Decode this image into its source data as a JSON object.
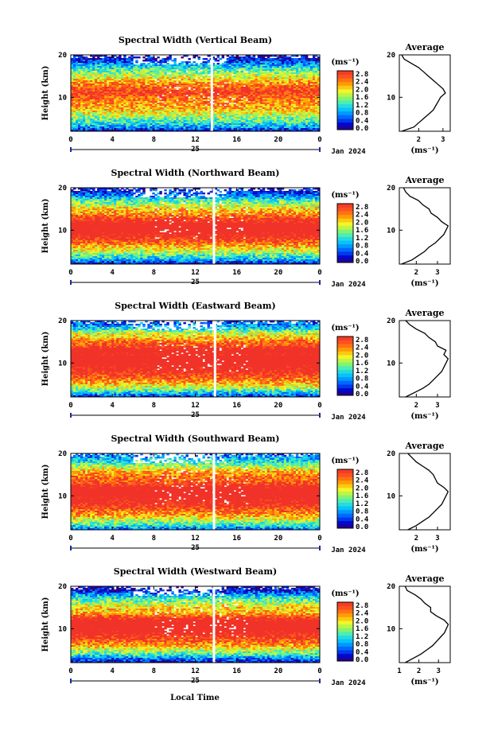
{
  "figure": {
    "x_label": "Local Time",
    "date_label": "Jan 2024",
    "day_label": "25",
    "average_title": "Average",
    "colorbar_unit": "(ms⁻¹)"
  },
  "chart_data": [
    {
      "type": "heatmap",
      "title": "Spectral Width (Vertical Beam)",
      "xlabel": "",
      "ylabel": "Height (km)",
      "xlim": [
        0,
        24
      ],
      "ylim": [
        2,
        20
      ],
      "xticks": [
        "0",
        "4",
        "8",
        "12",
        "16",
        "20",
        "0"
      ],
      "yticks": [
        "10",
        "20"
      ],
      "colorbar": {
        "ticks": [
          "0.0",
          "0.4",
          "0.8",
          "1.2",
          "1.6",
          "2.0",
          "2.4",
          "2.8"
        ],
        "range": [
          0,
          2.8
        ]
      },
      "data_gap_hour": 13.6,
      "average_profile": {
        "xticks": [
          "2",
          "3"
        ],
        "xlim": [
          1.2,
          3.3
        ],
        "heights": [
          2,
          3,
          4,
          5,
          6,
          7,
          8,
          9,
          10,
          11,
          12,
          13,
          14,
          15,
          16,
          17,
          18,
          19,
          20
        ],
        "values": [
          1.3,
          1.8,
          2.0,
          2.2,
          2.4,
          2.6,
          2.7,
          2.8,
          2.9,
          3.1,
          3.0,
          2.8,
          2.6,
          2.4,
          2.2,
          2.0,
          1.7,
          1.4,
          1.3
        ]
      }
    },
    {
      "type": "heatmap",
      "title": "Spectral Width (Northward Beam)",
      "xlabel": "",
      "ylabel": "Height (km)",
      "xlim": [
        0,
        24
      ],
      "ylim": [
        2,
        20
      ],
      "xticks": [
        "0",
        "4",
        "8",
        "12",
        "16",
        "20",
        "0"
      ],
      "yticks": [
        "10",
        "20"
      ],
      "colorbar": {
        "ticks": [
          "0.0",
          "0.4",
          "0.8",
          "1.2",
          "1.6",
          "2.0",
          "2.4",
          "2.8"
        ],
        "range": [
          0,
          2.8
        ]
      },
      "data_gap_hour": 13.8,
      "average_profile": {
        "xticks": [
          "2",
          "3"
        ],
        "xlim": [
          1.2,
          3.6
        ],
        "heights": [
          2,
          3,
          4,
          5,
          6,
          7,
          8,
          9,
          10,
          11,
          12,
          13,
          14,
          15,
          16,
          17,
          18,
          19,
          20
        ],
        "values": [
          1.3,
          1.8,
          2.1,
          2.4,
          2.6,
          2.9,
          3.1,
          3.3,
          3.4,
          3.5,
          3.2,
          3.0,
          2.7,
          2.6,
          2.3,
          2.1,
          1.7,
          1.5,
          1.4
        ]
      }
    },
    {
      "type": "heatmap",
      "title": "Spectral Width (Eastward Beam)",
      "xlabel": "",
      "ylabel": "Height (km)",
      "xlim": [
        0,
        24
      ],
      "ylim": [
        2,
        20
      ],
      "xticks": [
        "0",
        "4",
        "8",
        "12",
        "16",
        "20",
        "0"
      ],
      "yticks": [
        "10",
        "20"
      ],
      "colorbar": {
        "ticks": [
          "0.0",
          "0.4",
          "0.8",
          "1.2",
          "1.6",
          "2.0",
          "2.4",
          "2.8"
        ],
        "range": [
          0,
          2.8
        ]
      },
      "data_gap_hour": 13.9,
      "average_profile": {
        "xticks": [
          "2",
          "3"
        ],
        "xlim": [
          1.2,
          3.6
        ],
        "heights": [
          2,
          3,
          4,
          5,
          6,
          7,
          8,
          9,
          10,
          11,
          12,
          13,
          14,
          15,
          16,
          17,
          18,
          19,
          20
        ],
        "values": [
          1.5,
          1.9,
          2.3,
          2.6,
          2.8,
          3.0,
          3.2,
          3.3,
          3.4,
          3.5,
          3.3,
          3.4,
          3.0,
          2.9,
          2.6,
          2.4,
          2.0,
          1.7,
          1.5
        ]
      }
    },
    {
      "type": "heatmap",
      "title": "Spectral Width (Southward Beam)",
      "xlabel": "",
      "ylabel": "Height (km)",
      "xlim": [
        0,
        24
      ],
      "ylim": [
        2,
        20
      ],
      "xticks": [
        "0",
        "4",
        "8",
        "12",
        "16",
        "20",
        "0"
      ],
      "yticks": [
        "10",
        "20"
      ],
      "colorbar": {
        "ticks": [
          "0.0",
          "0.4",
          "0.8",
          "1.2",
          "1.6",
          "2.0",
          "2.4",
          "2.8"
        ],
        "range": [
          0,
          2.8
        ]
      },
      "data_gap_hour": 13.8,
      "average_profile": {
        "xticks": [
          "2",
          "3"
        ],
        "xlim": [
          1.2,
          3.6
        ],
        "heights": [
          2,
          3,
          4,
          5,
          6,
          7,
          8,
          9,
          10,
          11,
          12,
          13,
          14,
          15,
          16,
          17,
          18,
          19,
          20
        ],
        "values": [
          1.6,
          2.0,
          2.3,
          2.6,
          2.8,
          3.0,
          3.2,
          3.3,
          3.4,
          3.5,
          3.3,
          3.0,
          2.9,
          2.8,
          2.6,
          2.3,
          2.0,
          1.8,
          1.6
        ]
      }
    },
    {
      "type": "heatmap",
      "title": "Spectral Width (Westward Beam)",
      "xlabel": "",
      "ylabel": "Height (km)",
      "xlim": [
        0,
        24
      ],
      "ylim": [
        2,
        20
      ],
      "xticks": [
        "0",
        "4",
        "8",
        "12",
        "16",
        "20",
        "0"
      ],
      "yticks": [
        "10",
        "20"
      ],
      "colorbar": {
        "ticks": [
          "0.0",
          "0.4",
          "0.8",
          "1.2",
          "1.6",
          "2.0",
          "2.4",
          "2.8"
        ],
        "range": [
          0,
          2.8
        ]
      },
      "data_gap_hour": 13.8,
      "average_profile": {
        "xticks": [
          "1",
          "2",
          "3"
        ],
        "xlim": [
          1.0,
          3.6
        ],
        "heights": [
          2,
          3,
          4,
          5,
          6,
          7,
          8,
          9,
          10,
          11,
          12,
          13,
          14,
          15,
          16,
          17,
          18,
          19,
          20
        ],
        "values": [
          1.3,
          1.7,
          2.1,
          2.4,
          2.7,
          2.9,
          3.1,
          3.3,
          3.4,
          3.5,
          3.3,
          2.9,
          2.6,
          2.6,
          2.3,
          2.1,
          1.8,
          1.4,
          1.3
        ]
      }
    }
  ]
}
